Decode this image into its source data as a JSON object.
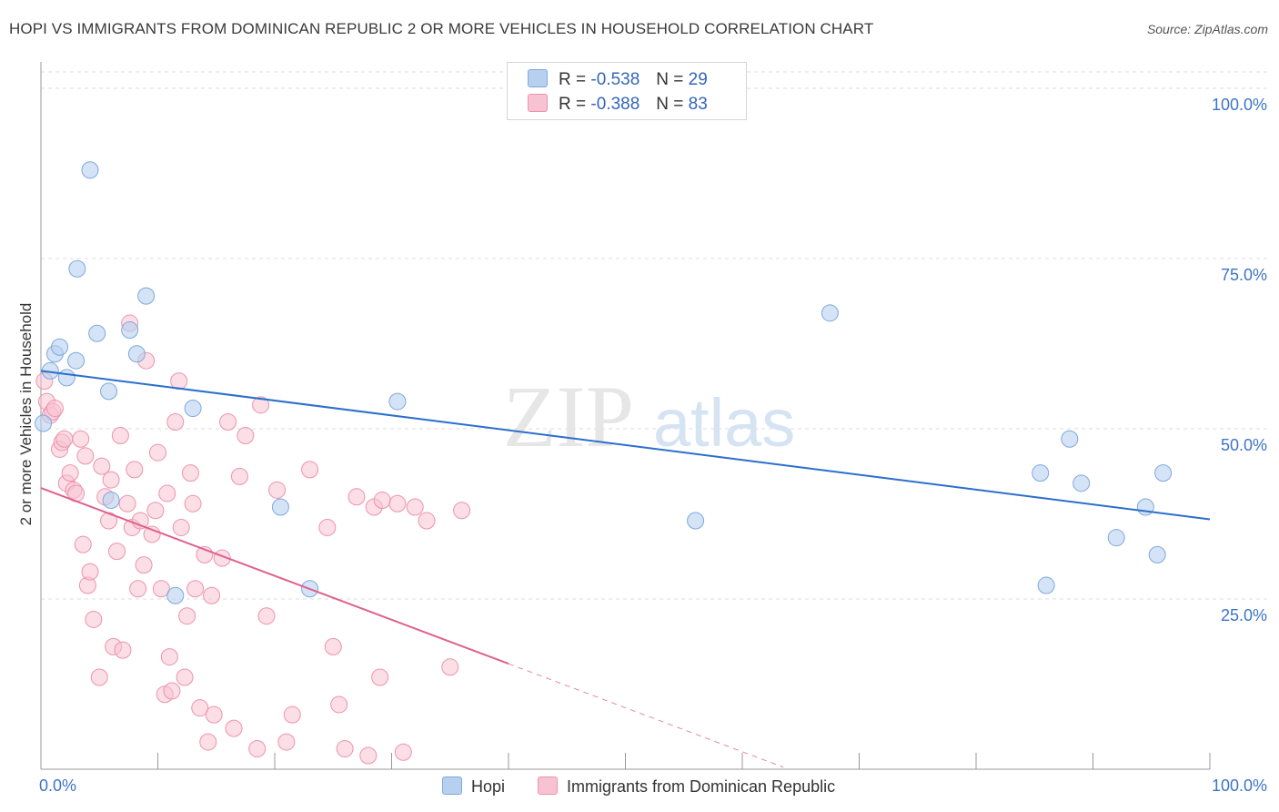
{
  "title": "HOPI VS IMMIGRANTS FROM DOMINICAN REPUBLIC 2 OR MORE VEHICLES IN HOUSEHOLD CORRELATION CHART",
  "source": "Source: ZipAtlas.com",
  "watermark": {
    "zip": "ZIP",
    "atlas": "atlas"
  },
  "legend": {
    "r_label": "R =",
    "n_label": "N =",
    "series": [
      {
        "r": "-0.538",
        "n": "29"
      },
      {
        "r": "-0.388",
        "n": "83"
      }
    ]
  },
  "bottom_legend": [
    "Hopi",
    "Immigrants from Dominican Republic"
  ],
  "colors": {
    "hopi_fill": "#b8d0f0",
    "hopi_stroke": "#7fa8dc",
    "hopi_line": "#2b6fcc",
    "dom_fill": "#f7c3d2",
    "dom_stroke": "#ec93ae",
    "dom_line": "#e0608c",
    "axis_text": "#3d74c6",
    "grid": "#dddddd"
  },
  "chart_data": {
    "type": "scatter",
    "xlabel": "",
    "ylabel": "2 or more Vehicles in Household",
    "xlim": [
      0,
      100
    ],
    "ylim": [
      0,
      100
    ],
    "x_tick_labels": [
      "0.0%",
      "100.0%"
    ],
    "y_tick_labels": [
      "100.0%",
      "75.0%",
      "50.0%",
      "25.0%"
    ],
    "y_ticks": [
      100,
      75,
      50,
      25
    ],
    "grid": true,
    "series": [
      {
        "name": "Hopi",
        "points": [
          [
            0.2,
            50.8
          ],
          [
            0.8,
            58.5
          ],
          [
            1.2,
            61.0
          ],
          [
            1.6,
            62.0
          ],
          [
            2.2,
            57.5
          ],
          [
            3.0,
            60.0
          ],
          [
            4.2,
            88.0
          ],
          [
            3.1,
            73.5
          ],
          [
            4.8,
            64.0
          ],
          [
            5.8,
            55.5
          ],
          [
            6.0,
            39.5
          ],
          [
            7.6,
            64.5
          ],
          [
            8.2,
            61.0
          ],
          [
            9.0,
            69.5
          ],
          [
            11.5,
            25.5
          ],
          [
            13.0,
            53.0
          ],
          [
            20.5,
            38.5
          ],
          [
            23.0,
            26.5
          ],
          [
            30.5,
            54.0
          ],
          [
            56.0,
            36.5
          ],
          [
            67.5,
            67.0
          ],
          [
            85.5,
            43.5
          ],
          [
            86.0,
            27.0
          ],
          [
            88.0,
            48.5
          ],
          [
            89.0,
            42.0
          ],
          [
            92.0,
            34.0
          ],
          [
            94.5,
            38.5
          ],
          [
            95.5,
            31.5
          ],
          [
            96.0,
            43.5
          ]
        ],
        "trend": {
          "x": [
            0,
            100
          ],
          "y": [
            58.5,
            36.7
          ]
        }
      },
      {
        "name": "Immigrants from Dominican Republic",
        "points": [
          [
            0.3,
            57.0
          ],
          [
            0.5,
            54.0
          ],
          [
            0.8,
            52.0
          ],
          [
            1.0,
            52.5
          ],
          [
            1.2,
            53.0
          ],
          [
            1.6,
            47.0
          ],
          [
            1.8,
            48.0
          ],
          [
            2.0,
            48.5
          ],
          [
            2.2,
            42.0
          ],
          [
            2.5,
            43.5
          ],
          [
            2.8,
            41.0
          ],
          [
            3.0,
            40.5
          ],
          [
            3.4,
            48.5
          ],
          [
            3.6,
            33.0
          ],
          [
            3.8,
            46.0
          ],
          [
            4.0,
            27.0
          ],
          [
            4.2,
            29.0
          ],
          [
            4.5,
            22.0
          ],
          [
            5.0,
            13.5
          ],
          [
            5.2,
            44.5
          ],
          [
            5.5,
            40.0
          ],
          [
            5.8,
            36.5
          ],
          [
            6.0,
            42.5
          ],
          [
            6.2,
            18.0
          ],
          [
            6.5,
            32.0
          ],
          [
            6.8,
            49.0
          ],
          [
            7.0,
            17.5
          ],
          [
            7.4,
            39.0
          ],
          [
            7.8,
            35.5
          ],
          [
            8.0,
            44.0
          ],
          [
            8.3,
            26.5
          ],
          [
            8.5,
            36.5
          ],
          [
            8.8,
            30.0
          ],
          [
            9.0,
            60.0
          ],
          [
            9.5,
            34.5
          ],
          [
            9.8,
            38.0
          ],
          [
            10.0,
            46.5
          ],
          [
            10.3,
            26.5
          ],
          [
            10.6,
            11.0
          ],
          [
            10.8,
            40.5
          ],
          [
            11.0,
            16.5
          ],
          [
            11.2,
            11.5
          ],
          [
            11.5,
            51.0
          ],
          [
            11.8,
            57.0
          ],
          [
            12.0,
            35.5
          ],
          [
            12.3,
            13.5
          ],
          [
            12.5,
            22.5
          ],
          [
            12.8,
            43.5
          ],
          [
            13.0,
            39.0
          ],
          [
            13.2,
            26.5
          ],
          [
            13.6,
            9.0
          ],
          [
            14.0,
            31.5
          ],
          [
            14.3,
            4.0
          ],
          [
            14.6,
            25.5
          ],
          [
            14.8,
            8.0
          ],
          [
            15.5,
            31.0
          ],
          [
            16.0,
            51.0
          ],
          [
            16.5,
            6.0
          ],
          [
            17.0,
            43.0
          ],
          [
            17.5,
            49.0
          ],
          [
            18.5,
            3.0
          ],
          [
            18.8,
            53.5
          ],
          [
            19.3,
            22.5
          ],
          [
            20.2,
            41.0
          ],
          [
            21.0,
            4.0
          ],
          [
            21.5,
            8.0
          ],
          [
            23.0,
            44.0
          ],
          [
            24.5,
            35.5
          ],
          [
            25.0,
            18.0
          ],
          [
            25.5,
            9.5
          ],
          [
            26.0,
            3.0
          ],
          [
            27.0,
            40.0
          ],
          [
            28.0,
            2.0
          ],
          [
            28.5,
            38.5
          ],
          [
            29.0,
            13.5
          ],
          [
            29.2,
            39.5
          ],
          [
            30.5,
            39.0
          ],
          [
            31.0,
            2.5
          ],
          [
            32.0,
            38.5
          ],
          [
            33.0,
            36.5
          ],
          [
            35.0,
            15.0
          ],
          [
            36.0,
            38.0
          ],
          [
            7.6,
            65.5
          ]
        ],
        "trend": {
          "x": [
            0,
            40
          ],
          "y": [
            41.3,
            15.5
          ]
        },
        "trend_dashed": {
          "x": [
            40,
            63.5
          ],
          "y": [
            15.5,
            0.3
          ]
        }
      }
    ]
  }
}
